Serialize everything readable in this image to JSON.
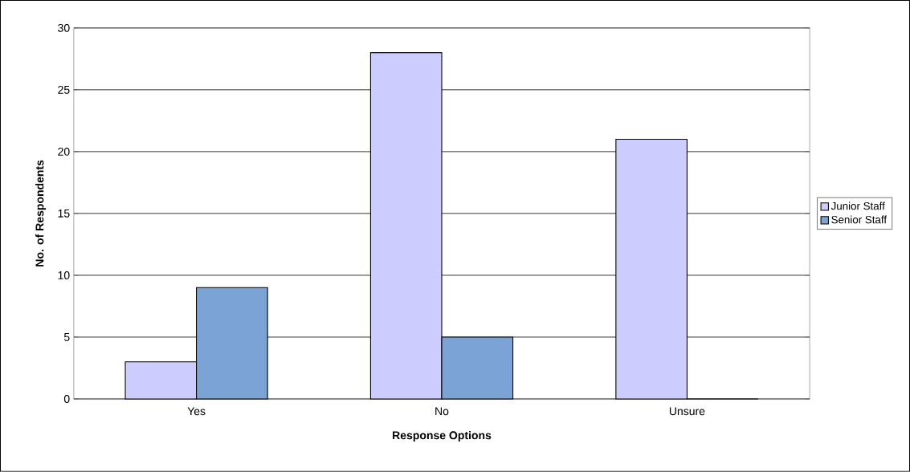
{
  "chart_data": {
    "type": "bar",
    "xlabel": "Response Options",
    "ylabel": "No. of Respondents",
    "categories": [
      "Yes",
      "No",
      "Unsure"
    ],
    "series": [
      {
        "name": "Junior Staff",
        "color": "#ccccff",
        "values": [
          3,
          28,
          21
        ]
      },
      {
        "name": "Senior Staff",
        "color": "#7ba3d6",
        "values": [
          9,
          5,
          0
        ]
      }
    ],
    "ylim": [
      0,
      30
    ],
    "yticks": [
      0,
      5,
      10,
      15,
      20,
      25,
      30
    ],
    "grid": "y",
    "legend": "right"
  }
}
